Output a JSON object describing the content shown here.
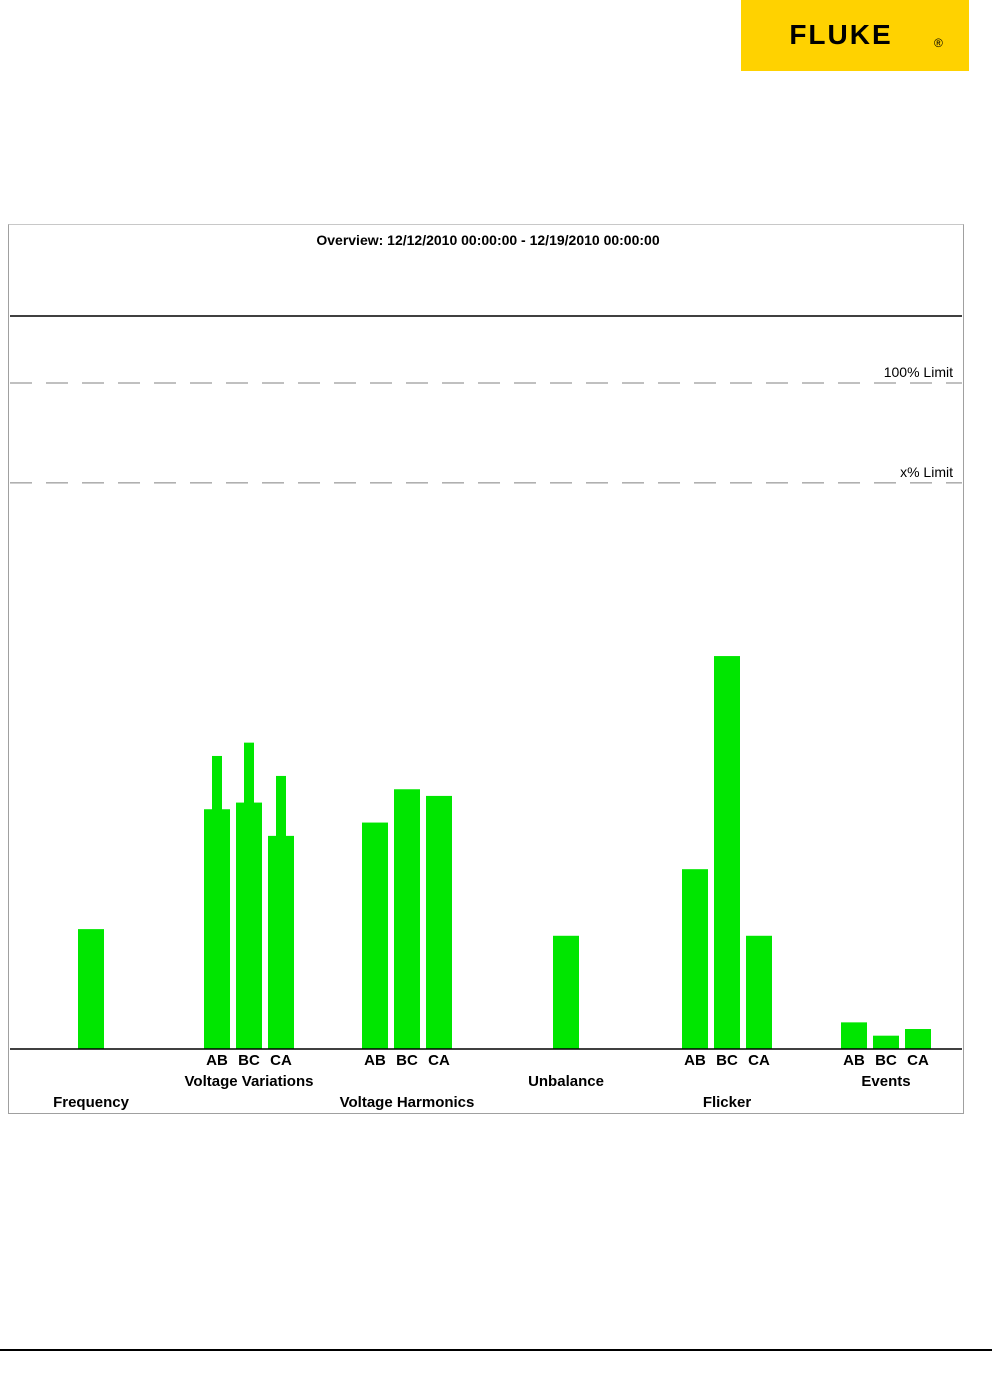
{
  "brand": {
    "name": "FLUKE",
    "mark": "®",
    "bg_color": "#ffd200",
    "text_color": "#000000"
  },
  "chart_data": {
    "type": "bar",
    "title": "Overview: 12/12/2010 00:00:00 - 12/19/2010 00:00:00",
    "bar_color": "#00e600",
    "ylim": [
      0,
      1
    ],
    "limit_lines": [
      {
        "label": "100% Limit",
        "value": 1.0
      },
      {
        "label": "x% Limit",
        "value": 0.85
      }
    ],
    "groups": [
      {
        "label": "Frequency",
        "label_row": 2,
        "phase_labels": false,
        "bars": [
          {
            "phase": "",
            "value": 0.18
          }
        ]
      },
      {
        "label": "Voltage Variations",
        "label_row": 1,
        "phase_labels": true,
        "bars": [
          {
            "phase": "AB",
            "value": 0.36,
            "max": 0.44
          },
          {
            "phase": "BC",
            "value": 0.37,
            "max": 0.46
          },
          {
            "phase": "CA",
            "value": 0.32,
            "max": 0.41
          }
        ]
      },
      {
        "label": "Voltage Harmonics",
        "label_row": 2,
        "phase_labels": true,
        "bars": [
          {
            "phase": "AB",
            "value": 0.34
          },
          {
            "phase": "BC",
            "value": 0.39
          },
          {
            "phase": "CA",
            "value": 0.38
          }
        ]
      },
      {
        "label": "Unbalance",
        "label_row": 1,
        "phase_labels": false,
        "bars": [
          {
            "phase": "",
            "value": 0.17
          }
        ]
      },
      {
        "label": "Flicker",
        "label_row": 2,
        "phase_labels": true,
        "bars": [
          {
            "phase": "AB",
            "value": 0.27
          },
          {
            "phase": "BC",
            "value": 0.59
          },
          {
            "phase": "CA",
            "value": 0.17
          }
        ]
      },
      {
        "label": "Events",
        "label_row": 1,
        "phase_labels": true,
        "bars": [
          {
            "phase": "AB",
            "value": 0.04
          },
          {
            "phase": "BC",
            "value": 0.02
          },
          {
            "phase": "CA",
            "value": 0.03
          }
        ]
      }
    ]
  }
}
